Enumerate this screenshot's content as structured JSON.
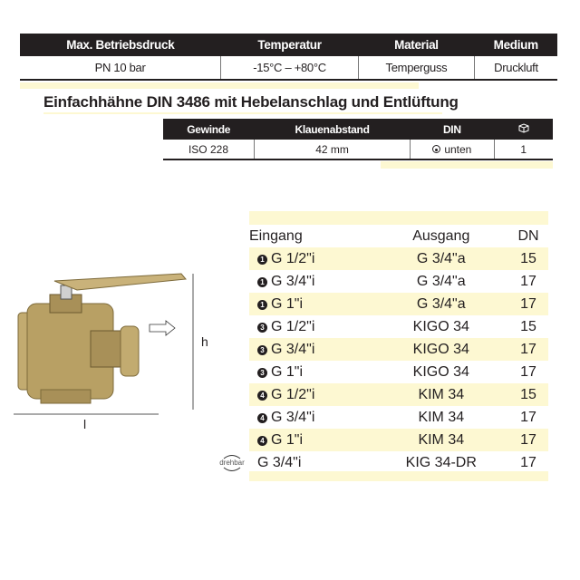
{
  "spec_table": {
    "headers": [
      "Max. Betriebsdruck",
      "Temperatur",
      "Material",
      "Medium"
    ],
    "values": [
      "PN 10 bar",
      "-15°C – +80°C",
      "Temperguss",
      "Druckluft"
    ]
  },
  "title": "Einfachhähne DIN 3486 mit Hebelanschlag und Entlüftung",
  "detail_table": {
    "headers": [
      "Gewinde",
      "Klauenabstand",
      "DIN",
      "package-icon"
    ],
    "values": [
      "ISO 228",
      "42 mm",
      "unten",
      "1"
    ]
  },
  "dimensions": {
    "length": "l",
    "height": "h"
  },
  "product_table": {
    "headers": [
      "Eingang",
      "Ausgang",
      "DN"
    ],
    "rows": [
      {
        "marker": "1",
        "eingang": "G 1/2\"i",
        "ausgang": "G 3/4\"a",
        "dn": "15"
      },
      {
        "marker": "1",
        "eingang": "G 3/4\"i",
        "ausgang": "G 3/4\"a",
        "dn": "17"
      },
      {
        "marker": "1",
        "eingang": "G 1\"i",
        "ausgang": "G 3/4\"a",
        "dn": "17"
      },
      {
        "marker": "3",
        "eingang": "G 1/2\"i",
        "ausgang": "KIGO 34",
        "dn": "15"
      },
      {
        "marker": "3",
        "eingang": "G 3/4\"i",
        "ausgang": "KIGO 34",
        "dn": "17"
      },
      {
        "marker": "3",
        "eingang": "G 1\"i",
        "ausgang": "KIGO 34",
        "dn": "17"
      },
      {
        "marker": "4",
        "eingang": "G 1/2\"i",
        "ausgang": "KIM 34",
        "dn": "15"
      },
      {
        "marker": "4",
        "eingang": "G 3/4\"i",
        "ausgang": "KIM 34",
        "dn": "17"
      },
      {
        "marker": "4",
        "eingang": "G 1\"i",
        "ausgang": "KIM 34",
        "dn": "17"
      },
      {
        "marker": "drehbar",
        "eingang": "G 3/4\"i",
        "ausgang": "KIG 34-DR",
        "dn": "17"
      }
    ]
  },
  "colors": {
    "header_bg": "#231f20",
    "stripe": "#fdf8d2",
    "brass": "#b8a064"
  }
}
